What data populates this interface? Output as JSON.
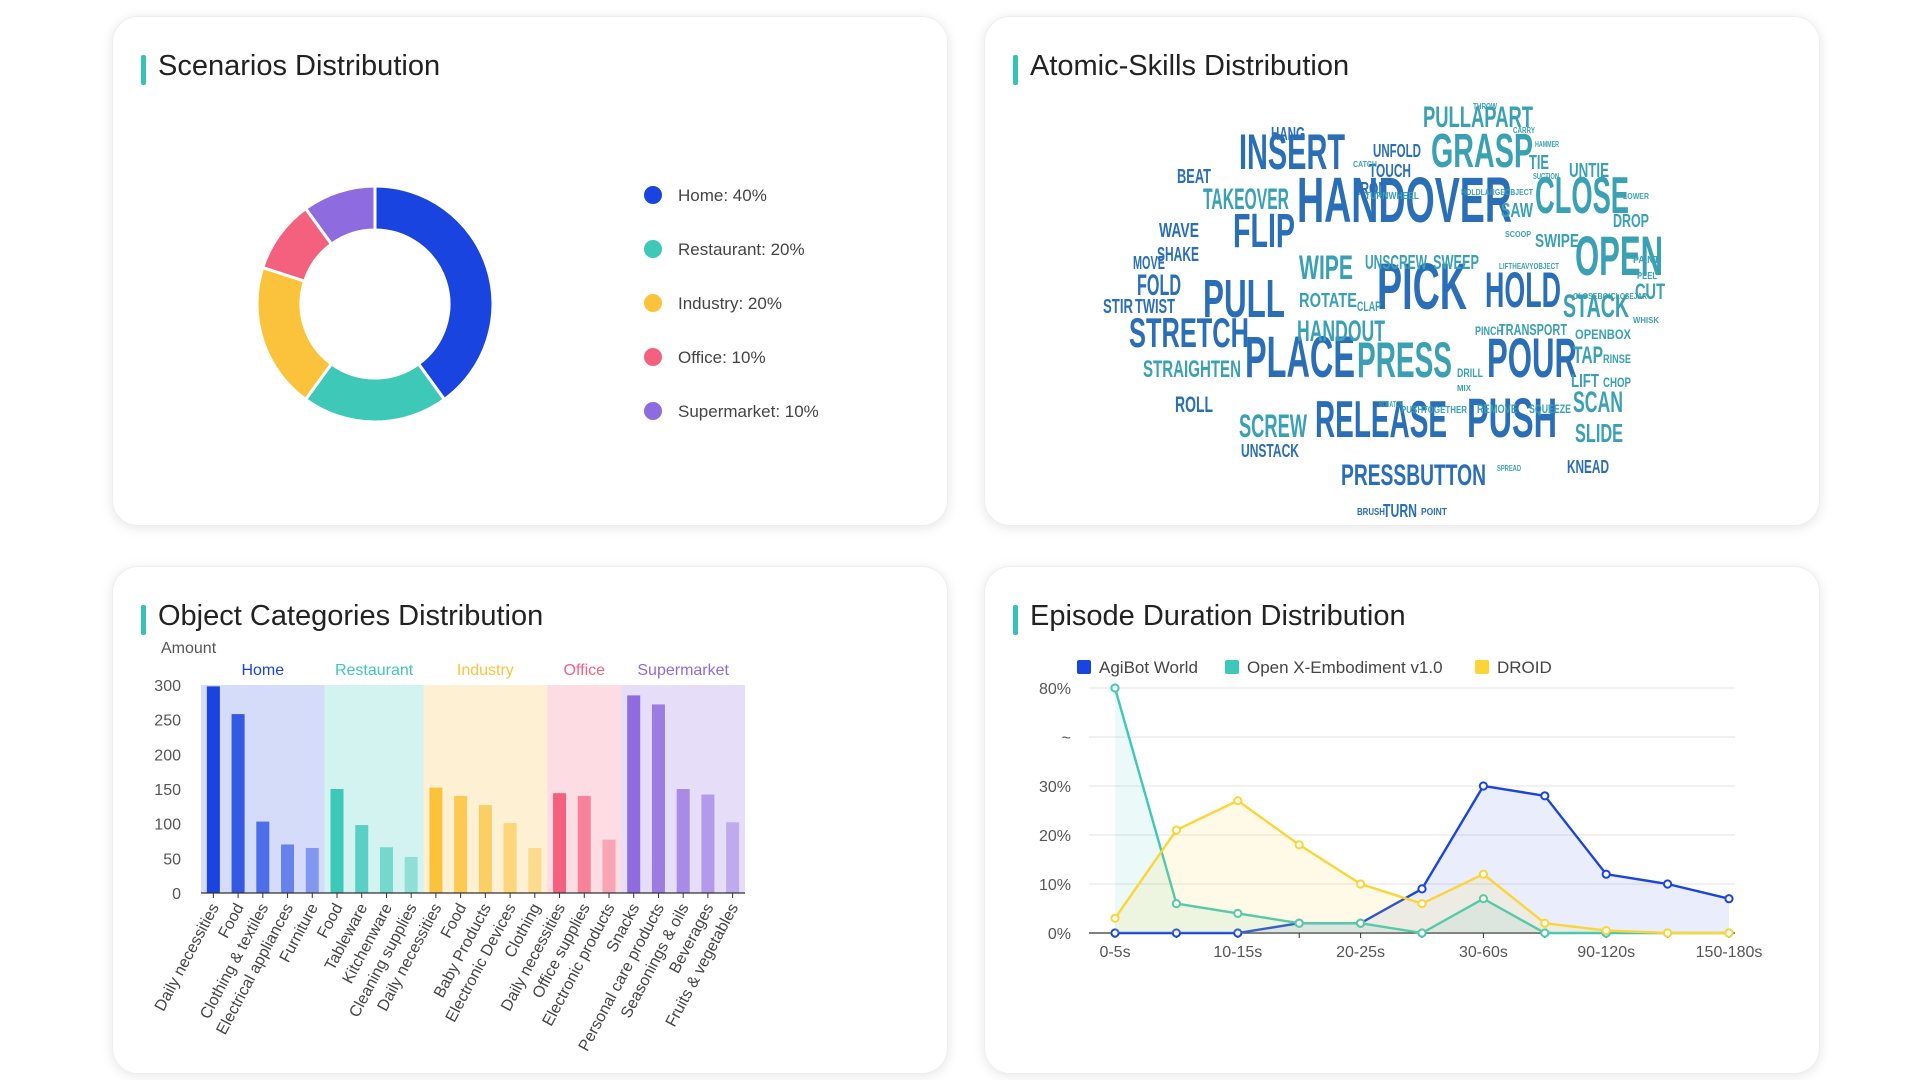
{
  "panels": {
    "scenarios": {
      "title": "Scenarios Distribution"
    },
    "skills": {
      "title": "Atomic-Skills Distribution"
    },
    "objects": {
      "title": "Object Categories Distribution",
      "ylabel": "Amount"
    },
    "duration": {
      "title": "Episode Duration Distribution"
    }
  },
  "chart_data": [
    {
      "id": "scenarios",
      "type": "pie",
      "title": "Scenarios Distribution",
      "slices": [
        {
          "label": "Home: 40%",
          "value": 40,
          "color": "#1a44e0"
        },
        {
          "label": "Restaurant: 20%",
          "value": 20,
          "color": "#3ec8b8"
        },
        {
          "label": "Industry: 20%",
          "value": 20,
          "color": "#fbc23c"
        },
        {
          "label": "Office: 10%",
          "value": 10,
          "color": "#f4617e"
        },
        {
          "label": "Supermarket: 10%",
          "value": 10,
          "color": "#8f6be0"
        }
      ]
    },
    {
      "id": "skills",
      "type": "wordcloud",
      "title": "Atomic-Skills Distribution",
      "words": [
        {
          "text": "HANDOVER",
          "weight": 10,
          "color": "#2a6eb8"
        },
        {
          "text": "PICK",
          "weight": 9,
          "color": "#2a6eb8"
        },
        {
          "text": "PLACE",
          "weight": 8,
          "color": "#2a6eb8"
        },
        {
          "text": "OPEN",
          "weight": 8,
          "color": "#3aa0b4"
        },
        {
          "text": "CLOSE",
          "weight": 7,
          "color": "#3aa0b4"
        },
        {
          "text": "RELEASE",
          "weight": 7,
          "color": "#2a6eb8"
        },
        {
          "text": "PUSH",
          "weight": 7,
          "color": "#2a6eb8"
        },
        {
          "text": "INSERT",
          "weight": 6,
          "color": "#2a6eb8"
        },
        {
          "text": "GRASP",
          "weight": 6,
          "color": "#3aa0b4"
        },
        {
          "text": "PULL",
          "weight": 6,
          "color": "#2a6eb8"
        },
        {
          "text": "POUR",
          "weight": 6,
          "color": "#2a6eb8"
        },
        {
          "text": "PRESS",
          "weight": 6,
          "color": "#3aa0b4"
        },
        {
          "text": "FLIP",
          "weight": 5,
          "color": "#2a6eb8"
        },
        {
          "text": "HOLD",
          "weight": 5,
          "color": "#2a6eb8"
        },
        {
          "text": "STRETCH",
          "weight": 5,
          "color": "#2a6eb8"
        },
        {
          "text": "PULLAPART",
          "weight": 4,
          "color": "#3aa0b4"
        },
        {
          "text": "TAKEOVER",
          "weight": 4,
          "color": "#3aa0b4"
        },
        {
          "text": "WIPE",
          "weight": 4,
          "color": "#3aa0b4"
        },
        {
          "text": "HANDOUT",
          "weight": 4,
          "color": "#3aa0b4"
        },
        {
          "text": "STACK",
          "weight": 4,
          "color": "#3aa0b4"
        },
        {
          "text": "SCREW",
          "weight": 4,
          "color": "#3aa0b4"
        },
        {
          "text": "SCAN",
          "weight": 4,
          "color": "#3aa0b4"
        },
        {
          "text": "PRESSBUTTON",
          "weight": 4,
          "color": "#2a6eb8"
        },
        {
          "text": "FOLD",
          "weight": 3,
          "color": "#2a6eb8"
        },
        {
          "text": "STRAIGHTEN",
          "weight": 3,
          "color": "#3aa0b4"
        },
        {
          "text": "SLIDE",
          "weight": 3,
          "color": "#3aa0b4"
        },
        {
          "text": "UNSCREW",
          "weight": 3,
          "color": "#3aa0b4"
        },
        {
          "text": "SWEEP",
          "weight": 3,
          "color": "#3aa0b4"
        },
        {
          "text": "ROTATE",
          "weight": 3,
          "color": "#3aa0b4"
        },
        {
          "text": "TAP",
          "weight": 3,
          "color": "#3aa0b4"
        },
        {
          "text": "CUT",
          "weight": 3,
          "color": "#3aa0b4"
        },
        {
          "text": "UNTIE",
          "weight": 3,
          "color": "#3aa0b4"
        },
        {
          "text": "ROLL",
          "weight": 3,
          "color": "#2a6eb8"
        },
        {
          "text": "UNSTACK",
          "weight": 3,
          "color": "#2a6eb8"
        },
        {
          "text": "TURN",
          "weight": 3,
          "color": "#2a6eb8"
        },
        {
          "text": "KNEAD",
          "weight": 3,
          "color": "#2a6eb8"
        },
        {
          "text": "HANG",
          "weight": 3,
          "color": "#2a6eb8"
        },
        {
          "text": "UNFOLD",
          "weight": 3,
          "color": "#2a6eb8"
        },
        {
          "text": "TOUCH",
          "weight": 3,
          "color": "#2a6eb8"
        },
        {
          "text": "IRON",
          "weight": 3,
          "color": "#2a6eb8"
        },
        {
          "text": "BEAT",
          "weight": 3,
          "color": "#2a6eb8"
        },
        {
          "text": "WAVE",
          "weight": 3,
          "color": "#2a6eb8"
        },
        {
          "text": "SHAKE",
          "weight": 3,
          "color": "#2a6eb8"
        },
        {
          "text": "MOVE",
          "weight": 3,
          "color": "#2a6eb8"
        },
        {
          "text": "STIR",
          "weight": 3,
          "color": "#2a6eb8"
        },
        {
          "text": "TWIST",
          "weight": 3,
          "color": "#2a6eb8"
        },
        {
          "text": "SAW",
          "weight": 3,
          "color": "#3aa0b4"
        },
        {
          "text": "SWIPE",
          "weight": 3,
          "color": "#3aa0b4"
        },
        {
          "text": "DROP",
          "weight": 3,
          "color": "#3aa0b4"
        },
        {
          "text": "TIE",
          "weight": 3,
          "color": "#3aa0b4"
        },
        {
          "text": "LIFT",
          "weight": 3,
          "color": "#3aa0b4"
        },
        {
          "text": "CHOP",
          "weight": 2,
          "color": "#3aa0b4"
        },
        {
          "text": "RINSE",
          "weight": 2,
          "color": "#3aa0b4"
        },
        {
          "text": "OPENBOX",
          "weight": 2,
          "color": "#3aa0b4"
        },
        {
          "text": "TRANSPORT",
          "weight": 2,
          "color": "#3aa0b4"
        },
        {
          "text": "PINCH",
          "weight": 2,
          "color": "#3aa0b4"
        },
        {
          "text": "REMOVE",
          "weight": 2,
          "color": "#3aa0b4"
        },
        {
          "text": "SQUEEZE",
          "weight": 2,
          "color": "#3aa0b4"
        },
        {
          "text": "PUSHTOGETHER",
          "weight": 2,
          "color": "#3aa0b4"
        },
        {
          "text": "DRILL",
          "weight": 2,
          "color": "#3aa0b4"
        },
        {
          "text": "CLAP",
          "weight": 2,
          "color": "#3aa0b4"
        },
        {
          "text": "TURNWHEEL",
          "weight": 2,
          "color": "#3aa0b4"
        },
        {
          "text": "HOLDLARGEOBJECT",
          "weight": 1,
          "color": "#3aa0b4"
        },
        {
          "text": "SCOOP",
          "weight": 1,
          "color": "#3aa0b4"
        },
        {
          "text": "LIFTHEAVYOBJECT",
          "weight": 1,
          "color": "#3aa0b4"
        },
        {
          "text": "CLOSEBOX",
          "weight": 1,
          "color": "#3aa0b4"
        },
        {
          "text": "CLOSEJAR",
          "weight": 1,
          "color": "#3aa0b4"
        },
        {
          "text": "WHISK",
          "weight": 1,
          "color": "#3aa0b4"
        },
        {
          "text": "LOWER",
          "weight": 1,
          "color": "#3aa0b4"
        },
        {
          "text": "PAINT",
          "weight": 1,
          "color": "#3aa0b4"
        },
        {
          "text": "PEEL",
          "weight": 1,
          "color": "#3aa0b4"
        },
        {
          "text": "THROW",
          "weight": 1,
          "color": "#3aa0b4"
        },
        {
          "text": "CARRY",
          "weight": 1,
          "color": "#3aa0b4"
        },
        {
          "text": "HAMMER",
          "weight": 1,
          "color": "#3aa0b4"
        },
        {
          "text": "SUCTION",
          "weight": 1,
          "color": "#3aa0b4"
        },
        {
          "text": "CATCH",
          "weight": 1,
          "color": "#3aa0b4"
        },
        {
          "text": "MIX",
          "weight": 1,
          "color": "#3aa0b4"
        },
        {
          "text": "SCRATCH",
          "weight": 1,
          "color": "#3aa0b4"
        },
        {
          "text": "SPREAD",
          "weight": 1,
          "color": "#3aa0b4"
        },
        {
          "text": "BRUSH",
          "weight": 1,
          "color": "#2a6eb8"
        },
        {
          "text": "POINT",
          "weight": 1,
          "color": "#2a6eb8"
        }
      ]
    },
    {
      "id": "objects",
      "type": "bar",
      "title": "Object Categories Distribution",
      "ylabel": "Amount",
      "ylim": [
        0,
        300
      ],
      "yticks": [
        0,
        50,
        100,
        150,
        200,
        250,
        300
      ],
      "groups": [
        {
          "name": "Home",
          "color": "#1a44e0",
          "bg": "#d5dcf9",
          "bars": [
            {
              "label": "Daily necessities",
              "value": 298
            },
            {
              "label": "Food",
              "value": 258
            },
            {
              "label": "Clothing & textiles",
              "value": 103
            },
            {
              "label": "Electrical appliances",
              "value": 70
            },
            {
              "label": "Furniture",
              "value": 65
            }
          ]
        },
        {
          "name": "Restaurant",
          "color": "#3ec8b8",
          "bg": "#d3f3f0",
          "bars": [
            {
              "label": "Food",
              "value": 150
            },
            {
              "label": "Tableware",
              "value": 98
            },
            {
              "label": "Kitchenware",
              "value": 66
            },
            {
              "label": "Cleaning supplies",
              "value": 52
            }
          ]
        },
        {
          "name": "Industry",
          "color": "#fbc23c",
          "bg": "#fef1d3",
          "bars": [
            {
              "label": "Daily necessities",
              "value": 152
            },
            {
              "label": "Food",
              "value": 140
            },
            {
              "label": "Baby Products",
              "value": 127
            },
            {
              "label": "Electronic Devices",
              "value": 101
            },
            {
              "label": "Clothing",
              "value": 65
            }
          ]
        },
        {
          "name": "Office",
          "color": "#f4617e",
          "bg": "#fddce3",
          "bars": [
            {
              "label": "Daily necessities",
              "value": 144
            },
            {
              "label": "Office supplies",
              "value": 140
            },
            {
              "label": "Electronic products",
              "value": 77
            }
          ]
        },
        {
          "name": "Supermarket",
          "color": "#8f6be0",
          "bg": "#e6def8",
          "bars": [
            {
              "label": "Snacks",
              "value": 285
            },
            {
              "label": "Personal care products",
              "value": 272
            },
            {
              "label": "Seasonings & oils",
              "value": 150
            },
            {
              "label": "Beverages",
              "value": 142
            },
            {
              "label": "Fruits & vegetables",
              "value": 102
            }
          ]
        }
      ]
    },
    {
      "id": "duration",
      "type": "line",
      "title": "Episode Duration Distribution",
      "categories": [
        "0-5s",
        "5-10s",
        "10-15s",
        "15-20s",
        "20-25s",
        "25-30s",
        "30-60s",
        "60-90s",
        "90-120s",
        "120-150s",
        "150-180s"
      ],
      "x_tick_labels": [
        "0-5s",
        "10-15s",
        "20-25s",
        "30-60s",
        "90-120s",
        "150-180s"
      ],
      "y_tick_labels": [
        "0%",
        "10%",
        "20%",
        "30%",
        "~",
        "80%"
      ],
      "axis_break": true,
      "series": [
        {
          "name": "AgiBot World",
          "color": "#1a44e0",
          "values": [
            0,
            0,
            0,
            2,
            2,
            9,
            30,
            28,
            12,
            10,
            7
          ]
        },
        {
          "name": "Open X-Embodiment v1.0",
          "color": "#3ec8b8",
          "values": [
            80,
            6,
            4,
            2,
            2,
            0,
            7,
            0,
            0,
            0,
            0
          ]
        },
        {
          "name": "DROID",
          "color": "#fbd536",
          "values": [
            3,
            21,
            27,
            18,
            10,
            6,
            12,
            2,
            0.5,
            0,
            0
          ]
        }
      ]
    }
  ]
}
